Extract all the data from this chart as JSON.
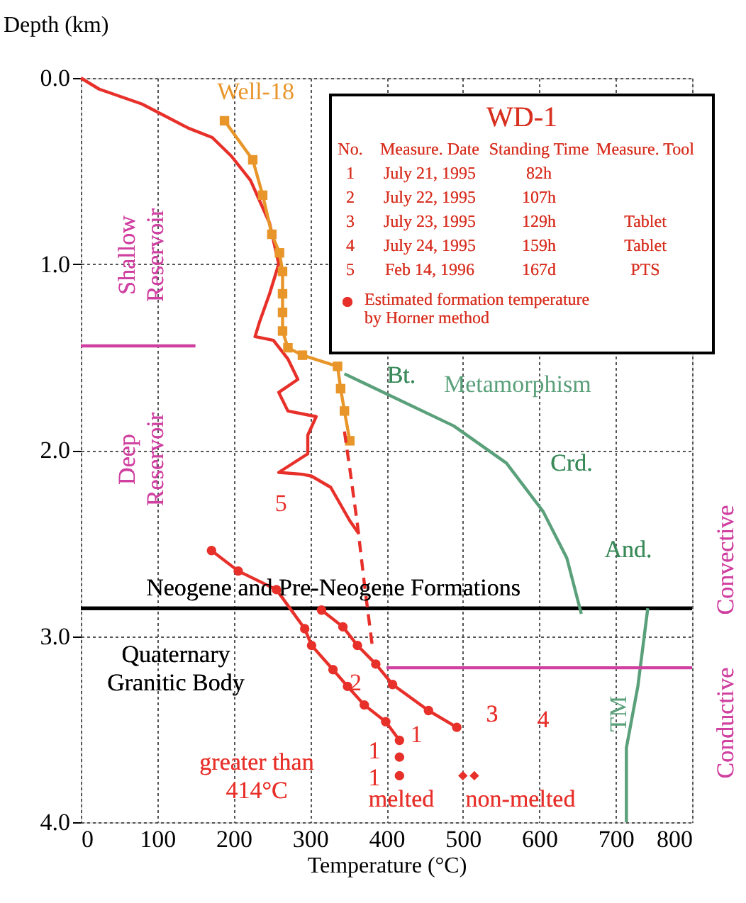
{
  "chart_data": {
    "type": "line",
    "title": "WD-1",
    "xlabel": "Temperature (°C)",
    "ylabel": "Depth (km)",
    "xlim": [
      0,
      800
    ],
    "xticks": [
      0,
      100,
      200,
      300,
      400,
      500,
      600,
      700,
      800
    ],
    "ylim": [
      4,
      0
    ],
    "yticks": [
      {
        "value": 0,
        "label": "0.0"
      },
      {
        "value": 1,
        "label": "1.0"
      },
      {
        "value": 2,
        "label": "2.0"
      },
      {
        "value": 3,
        "label": "3.0"
      },
      {
        "value": 4,
        "label": "4.0"
      }
    ],
    "grid": true,
    "legend": "top right",
    "series": [
      {
        "name": "5",
        "color": "#e8302a",
        "marker": "none",
        "line_style": "solid",
        "x": [
          0,
          24,
          80,
          141,
          172,
          197,
          222,
          247,
          259,
          247,
          234,
          228,
          252,
          271,
          284,
          259,
          271,
          308,
          297,
          297,
          259,
          290,
          302,
          327,
          352,
          364
        ],
        "values": [
          0,
          0.06,
          0.14,
          0.27,
          0.32,
          0.42,
          0.55,
          0.78,
          1.0,
          1.16,
          1.31,
          1.39,
          1.41,
          1.51,
          1.62,
          1.69,
          1.79,
          1.82,
          1.92,
          2.02,
          2.12,
          2.13,
          2.14,
          2.2,
          2.38,
          2.45
        ]
      },
      {
        "name": "Well-18",
        "color": "#e8962a",
        "marker": "square",
        "line_style": "solid",
        "x": [
          188,
          225,
          238,
          250,
          260,
          264,
          264,
          264,
          264,
          271,
          290,
          336,
          340,
          345,
          352
        ],
        "values": [
          0.23,
          0.44,
          0.63,
          0.84,
          0.94,
          1.04,
          1.16,
          1.26,
          1.36,
          1.45,
          1.49,
          1.55,
          1.67,
          1.79,
          1.95
        ]
      },
      {
        "name": "2",
        "color": "#e8302a",
        "marker": "none",
        "line_style": "dashed",
        "x": [
          345,
          352,
          362,
          372,
          382
        ],
        "values": [
          1.9,
          2.1,
          2.4,
          2.75,
          3.07
        ]
      },
      {
        "name": "1",
        "color": "#e8302a",
        "marker": "circle",
        "line_style": "solid",
        "x": [
          171,
          206,
          256,
          293,
          302,
          330,
          349,
          371,
          399,
          417
        ],
        "values": [
          2.54,
          2.65,
          2.75,
          2.96,
          3.05,
          3.18,
          3.27,
          3.37,
          3.46,
          3.56
        ]
      },
      {
        "name": "Estimated formation temperature by Horner method",
        "color": "#e8302a",
        "marker": "circle",
        "line_style": "solid",
        "x": [
          315,
          343,
          362,
          386,
          408,
          455,
          492
        ],
        "values": [
          2.86,
          2.95,
          3.05,
          3.15,
          3.26,
          3.4,
          3.49
        ]
      },
      {
        "type": "scatter",
        "color": "#e8302a",
        "marker": "circle",
        "x": [
          417,
          417
        ],
        "values": [
          3.65,
          3.75
        ]
      },
      {
        "type": "scatter",
        "color": "#e8302a",
        "marker": "diamond",
        "x": [
          500,
          515
        ],
        "values": [
          3.75,
          3.75
        ]
      },
      {
        "name": "Metamorphism",
        "color": "#5aa07a",
        "marker": "none",
        "line_style": "solid",
        "x": [
          345,
          488,
          557,
          605,
          636,
          655
        ],
        "values": [
          1.59,
          1.87,
          2.07,
          2.33,
          2.58,
          2.88
        ]
      },
      {
        "name": "TM",
        "color": "#5aa07a",
        "marker": "none",
        "line_style": "solid",
        "x": [
          742,
          729,
          714,
          714
        ],
        "values": [
          2.85,
          3.27,
          3.6,
          4.0
        ]
      },
      {
        "color": "#d040a0",
        "marker": "none",
        "line_style": "solid",
        "x": [
          0,
          150
        ],
        "values": [
          1.44,
          1.44
        ]
      },
      {
        "color": "#d040a0",
        "marker": "none",
        "line_style": "solid",
        "x": [
          400,
          800
        ],
        "values": [
          3.17,
          3.17
        ]
      }
    ],
    "ref_lines": [
      {
        "axis": "y",
        "value": 2.85,
        "color": "#000000"
      }
    ],
    "annotations": [
      "No.  Measure. Date  Standing Time  Measure. Tool",
      "1  July 21, 1995  82h",
      "2  July 22, 1995  107h",
      "3  July 23, 1995  129h  Tablet",
      "4  July 24, 1995  159h  Tablet",
      "5  Feb 14, 1996  167d  PTS",
      "Convective",
      "Conductive",
      "Bt.",
      "Crd.",
      "And.",
      "Shallow Reservoir",
      "Deep Reservoir",
      "Neogene and Pre-Neogene Formations",
      "Quaternary Granitic Body",
      "1",
      "1",
      "greater than 414°C",
      "melted",
      "non-melted",
      "3",
      "4"
    ]
  }
}
